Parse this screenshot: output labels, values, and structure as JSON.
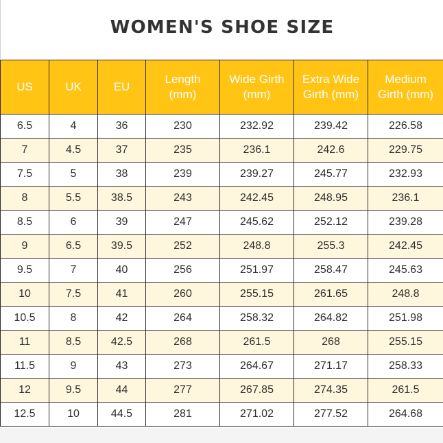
{
  "title": "WOMEN'S SHOE SIZE",
  "columns": [
    "US",
    "UK",
    "EU",
    "Length (mm)",
    "Wide Girth (mm)",
    "Extra Wide Girth (mm)",
    "Medium Girth (mm)"
  ],
  "rows": [
    [
      "6.5",
      "4",
      "36",
      "230",
      "232.92",
      "239.42",
      "226.58"
    ],
    [
      "7",
      "4.5",
      "37",
      "235",
      "236.1",
      "242.6",
      "229.75"
    ],
    [
      "7.5",
      "5",
      "38",
      "239",
      "239.27",
      "245.77",
      "232.93"
    ],
    [
      "8",
      "5.5",
      "38.5",
      "243",
      "242.45",
      "248.95",
      "236.1"
    ],
    [
      "8.5",
      "6",
      "39",
      "247",
      "245.62",
      "252.12",
      "239.28"
    ],
    [
      "9",
      "6.5",
      "39.5",
      "252",
      "248.8",
      "255.3",
      "242.45"
    ],
    [
      "9.5",
      "7",
      "40",
      "256",
      "251.97",
      "258.47",
      "245.63"
    ],
    [
      "10",
      "7.5",
      "41",
      "260",
      "255.15",
      "261.65",
      "248.8"
    ],
    [
      "10.5",
      "8",
      "42",
      "264",
      "258.32",
      "264.82",
      "251.98"
    ],
    [
      "11",
      "8.5",
      "42.5",
      "268",
      "261.5",
      "268",
      "255.15"
    ],
    [
      "11.5",
      "9",
      "43",
      "273",
      "264.67",
      "271.17",
      "258.33"
    ],
    [
      "12",
      "9.5",
      "44",
      "277",
      "267.85",
      "274.35",
      "261.5"
    ],
    [
      "12.5",
      "10",
      "44.5",
      "281",
      "271.02",
      "277.52",
      "264.68"
    ]
  ],
  "colors": {
    "header_bg": "#ffc414",
    "header_text": "#ffffff",
    "alt_row_bg": "#fff7dd",
    "title_text": "#333333"
  }
}
